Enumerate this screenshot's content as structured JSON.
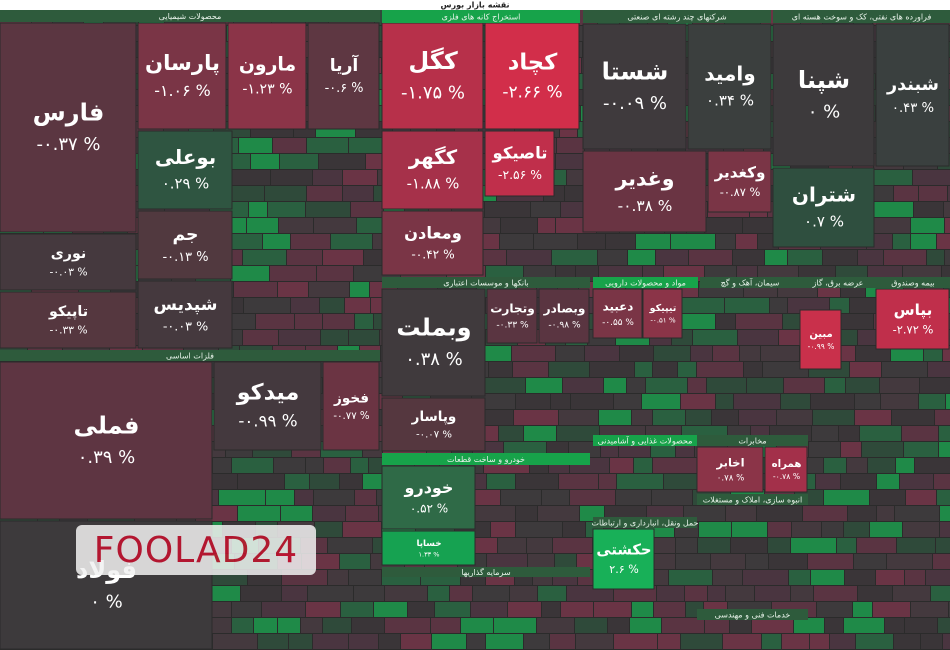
{
  "title": "نقشه بازار بورس",
  "watermark": "FOOLAD24",
  "sectors": [
    {
      "title": "محصولات شیمیایی"
    },
    {
      "title": "استخراج کانه های فلزی"
    },
    {
      "title": "شرکتهای چند رشته ای صنعتی"
    },
    {
      "title": "فراورده های نفتی، کک و سوخت هسته ای"
    },
    {
      "title": "فلزات اساسی"
    },
    {
      "title": "بانکها و موسسات اعتباری"
    },
    {
      "title": "مواد و محصولات دارویی"
    },
    {
      "title": "سیمان، آهک و گچ"
    },
    {
      "title": "عرضه برق، گاز"
    },
    {
      "title": "بیمه وصندوق"
    },
    {
      "title": "خودرو و ساخت قطعات"
    },
    {
      "title": "محصولات غذایی و آشامیدنی"
    },
    {
      "title": "مخابرات"
    },
    {
      "title": "سرمایه گذاریها"
    },
    {
      "title": "حمل ونقل، انبارداری و ارتباطات"
    },
    {
      "title": "انبوه سازی، املاک و مستغلات"
    },
    {
      "title": "خدمات فنی و مهندسی"
    }
  ],
  "tiles": [
    {
      "name": "فارس",
      "change": "-۰.۳۷ %",
      "color": "#5b3641"
    },
    {
      "name": "پارسان",
      "change": "-۱.۰۶ %",
      "color": "#7a3546"
    },
    {
      "name": "مارون",
      "change": "-۱.۲۳ %",
      "color": "#8b3448"
    },
    {
      "name": "آریا",
      "change": "-۰.۶ %",
      "color": "#5e3742"
    },
    {
      "name": "بوعلی",
      "change": "۰.۲۹ %",
      "color": "#2f5541"
    },
    {
      "name": "جم",
      "change": "-۰.۱۳ %",
      "color": "#51393f"
    },
    {
      "name": "شپدیس",
      "change": "-۰.۰۳ %",
      "color": "#45393e"
    },
    {
      "name": "نوری",
      "change": "-۰.۰۳ %",
      "color": "#45393e"
    },
    {
      "name": "تاپیکو",
      "change": "-۰.۳۳ %",
      "color": "#55373f"
    },
    {
      "name": "فملی",
      "change": "۰.۳۹ %",
      "color": "#5e3542"
    },
    {
      "name": "فولاد",
      "change": "۰ %",
      "color": "#3d3a3c"
    },
    {
      "name": "میدکو",
      "change": "-۰.۹۹ %",
      "color": "#44393e"
    },
    {
      "name": "فخوز",
      "change": "-۰.۷۷ %",
      "color": "#6b3443"
    },
    {
      "name": "کگل",
      "change": "-۱.۷۵ %",
      "color": "#b7304a"
    },
    {
      "name": "کچاد",
      "change": "-۲.۶۶ %",
      "color": "#d22e4a"
    },
    {
      "name": "کگهر",
      "change": "-۱.۸۸ %",
      "color": "#a6314a"
    },
    {
      "name": "ومعادن",
      "change": "-۰.۴۲ %",
      "color": "#7a3546"
    },
    {
      "name": "تاصیکو",
      "change": "-۲.۵۶ %",
      "color": "#c02f4b"
    },
    {
      "name": "شستا",
      "change": "-۰.۰۹ %",
      "color": "#3f3a3d"
    },
    {
      "name": "وامید",
      "change": "۰.۳۴ %",
      "color": "#3b3f3e"
    },
    {
      "name": "وغدیر",
      "change": "-۰.۳۸ %",
      "color": "#6a3443"
    },
    {
      "name": "وکغدیر",
      "change": "-۰.۸۷ %",
      "color": "#7a3546"
    },
    {
      "name": "شپنا",
      "change": "۰ %",
      "color": "#3d3a3c"
    },
    {
      "name": "شبندر",
      "change": "۰.۴۳ %",
      "color": "#3a403f"
    },
    {
      "name": "شتران",
      "change": "۰.۷ %",
      "color": "#2f4f3f"
    },
    {
      "name": "وبملت",
      "change": "۰.۳۸ %",
      "color": "#403a3d"
    },
    {
      "name": "وتجارت",
      "change": "-۰.۳۳ %",
      "color": "#5a3541"
    },
    {
      "name": "وبصادر",
      "change": "-۰.۹۸ %",
      "color": "#5a3541"
    },
    {
      "name": "وپاسار",
      "change": "-۰.۰۷ %",
      "color": "#55373f"
    },
    {
      "name": "خودرو",
      "change": "۰.۵۲ %",
      "color": "#2f6a47"
    },
    {
      "name": "خساپا",
      "change": "۱.۳۳ %",
      "color": "#16a251"
    },
    {
      "name": "بپاس",
      "change": "-۲.۷۲ %",
      "color": "#c02f4b"
    },
    {
      "name": "مبین",
      "change": "-۰.۹۹ %",
      "color": "#c9304b"
    },
    {
      "name": "حکشتی",
      "change": "۲.۶ %",
      "color": "#18b058"
    },
    {
      "name": "اخابر",
      "change": "۰.۷۸ %",
      "color": "#8b3448"
    },
    {
      "name": "همراه",
      "change": "-۰.۷۸ %",
      "color": "#a3304a"
    },
    {
      "name": "دعبید",
      "change": "-۰.۵۵ %",
      "color": "#7a3546"
    },
    {
      "name": "تیپیکو",
      "change": "-۰.۵۱ %",
      "color": "#8b3448"
    }
  ]
}
